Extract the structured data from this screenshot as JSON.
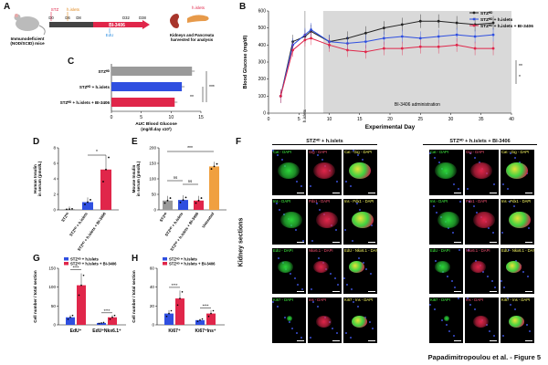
{
  "panelA": {
    "label": "A",
    "mouse_label": "Immunodeficient\n(NOD/SCID) mice",
    "days": [
      "D0",
      "D6",
      "D8",
      "D32",
      "D38"
    ],
    "stz_label": "STZ",
    "hislets_label": "h.islets",
    "drug_label": "BI-3406",
    "edu_label": "EdU",
    "harvest_label": "Kidneys and Pancreata\nharvested for analysis",
    "hislets_top": "h.islets"
  },
  "panelB": {
    "label": "B",
    "legend": [
      "STZᴴᴰ",
      "STZᴴᴰ + h.islets",
      "STZᴴᴰ + h.islets + BI-3406"
    ],
    "shade_label": "BI-3406 administration",
    "marker_label": "h.islets",
    "sig": [
      "**",
      "*"
    ]
  },
  "panelC": {
    "label": "C",
    "categories": [
      "STZᴴᴰ",
      "STZᴴᴰ + h.islets",
      "STZᴴᴰ + h.islets + BI-3406"
    ],
    "sig": [
      "***",
      "**"
    ]
  },
  "panelD": {
    "label": "D",
    "sig": "*"
  },
  "panelE": {
    "label": "E",
    "sig": [
      "***",
      "ns",
      "ns"
    ]
  },
  "panelF": {
    "label": "F",
    "group_left": "STZᴴᴰ + h.islets",
    "group_right": "STZᴴᴰ + h.islets + BI-3406",
    "side_label": "Kidney sections",
    "rows": [
      [
        "Cat - DAPI",
        "Gig - DAPI",
        "Cat - Gig - DAPI"
      ],
      [
        "Ins - DAPI",
        "Pdx1 - DAPI",
        "Ins - Pdx1 - DAPI"
      ],
      [
        "EdU - DAPI",
        "Nkx6.1 - DAPI",
        "EdU - Nkx6.1 - DAPI"
      ],
      [
        "Ki67 - DAPI",
        "Ins - DAPI",
        "Ki67 - Ins - DAPI"
      ]
    ]
  },
  "panelG": {
    "label": "G",
    "legend": [
      "STZᴴᴰ + h.islets",
      "STZᴴᴰ + h.islets + BI-3406"
    ],
    "sig": [
      "****",
      "****"
    ]
  },
  "panelH": {
    "label": "H",
    "legend": [
      "STZᴴᴰ + h.islets",
      "STZᴴᴰ + h.islets + BI-3406"
    ],
    "sig": [
      "****",
      "****"
    ]
  },
  "footer": "Papadimitropoulou et al. - Figure 5",
  "colors": {
    "black": "#222222",
    "blue": "#2f4fe0",
    "red": "#e0264a",
    "gray": "#9a9a9a",
    "orange": "#f0a040"
  },
  "chart_data": [
    {
      "id": "B",
      "type": "line",
      "xlabel": "Experimental Day",
      "ylabel": "Blood Glucose (mg/dl)",
      "xlim": [
        0,
        40
      ],
      "ylim": [
        0,
        600
      ],
      "xticks": [
        0,
        5,
        10,
        15,
        20,
        25,
        30,
        35,
        40
      ],
      "yticks": [
        0,
        100,
        200,
        300,
        400,
        500,
        600
      ],
      "shade": [
        9,
        40
      ],
      "marker_x": 6,
      "series": [
        {
          "name": "STZᴴᴰ",
          "color": "#222222",
          "x": [
            2,
            4,
            6,
            7,
            10,
            13,
            16,
            19,
            22,
            25,
            28,
            31,
            34,
            37
          ],
          "y": [
            100,
            420,
            450,
            480,
            420,
            440,
            470,
            500,
            520,
            540,
            540,
            530,
            520,
            530
          ]
        },
        {
          "name": "STZᴴᴰ + h.islets",
          "color": "#2f4fe0",
          "x": [
            2,
            4,
            6,
            7,
            10,
            13,
            16,
            19,
            22,
            25,
            28,
            31,
            34,
            37
          ],
          "y": [
            100,
            400,
            460,
            490,
            420,
            410,
            420,
            440,
            450,
            440,
            450,
            460,
            450,
            460
          ]
        },
        {
          "name": "STZᴴᴰ + h.islets + BI-3406",
          "color": "#e0264a",
          "x": [
            2,
            4,
            6,
            7,
            10,
            13,
            16,
            19,
            22,
            25,
            28,
            31,
            34,
            37
          ],
          "y": [
            100,
            370,
            430,
            440,
            400,
            370,
            360,
            380,
            380,
            390,
            390,
            400,
            380,
            380
          ]
        }
      ]
    },
    {
      "id": "C",
      "type": "bar",
      "orientation": "horizontal",
      "xlabel": "AUC Blood Glucose\n(mg/dl.day x10³)",
      "xlim": [
        0,
        15
      ],
      "xticks": [
        0,
        5,
        10,
        15
      ],
      "values": [
        13.5,
        11.8,
        10.6
      ],
      "colors": [
        "#9a9a9a",
        "#2f4fe0",
        "#e0264a"
      ]
    },
    {
      "id": "D",
      "type": "bar",
      "ylabel": "Human Insulin\nin serum (pmol/L)",
      "ylim": [
        0,
        8
      ],
      "yticks": [
        0,
        2,
        4,
        6,
        8
      ],
      "categories": [
        "STZᴴᴰ",
        "STZᴴᴰ + h.islets",
        "STZᴴᴰ + h.islets + BI-3406"
      ],
      "values": [
        0.1,
        1.0,
        5.2
      ],
      "colors": [
        "#9a9a9a",
        "#2f4fe0",
        "#e0264a"
      ]
    },
    {
      "id": "E",
      "type": "bar",
      "ylabel": "Mouse Insulin\nin serum (pmol/L)",
      "ylim": [
        0,
        200
      ],
      "yticks": [
        0,
        50,
        100,
        150,
        200
      ],
      "categories": [
        "STZᴴᴰ",
        "STZᴴᴰ + h.islets",
        "STZᴴᴰ + h.islets + BI-3406",
        "Untreated"
      ],
      "values": [
        30,
        32,
        30,
        140
      ],
      "colors": [
        "#9a9a9a",
        "#2f4fe0",
        "#e0264a",
        "#f0a040"
      ]
    },
    {
      "id": "G",
      "type": "bar",
      "ylabel": "Cell number / total section",
      "ylim": [
        0,
        150
      ],
      "yticks": [
        0,
        50,
        100,
        150
      ],
      "categories": [
        "EdU⁺",
        "EdU⁺Nkx6.1⁺"
      ],
      "series": [
        {
          "name": "STZᴴᴰ + h.islets",
          "values": [
            20,
            5
          ]
        },
        {
          "name": "STZᴴᴰ + h.islets + BI-3406",
          "values": [
            105,
            20
          ]
        }
      ]
    },
    {
      "id": "H",
      "type": "bar",
      "ylabel": "Cell number / total section",
      "ylim": [
        0,
        60
      ],
      "yticks": [
        0,
        20,
        40,
        60
      ],
      "categories": [
        "Ki67⁺",
        "Ki67⁺Ins⁺"
      ],
      "series": [
        {
          "name": "STZᴴᴰ + h.islets",
          "values": [
            12,
            5
          ]
        },
        {
          "name": "STZᴴᴰ + h.islets + BI-3406",
          "values": [
            28,
            12
          ]
        }
      ]
    }
  ]
}
